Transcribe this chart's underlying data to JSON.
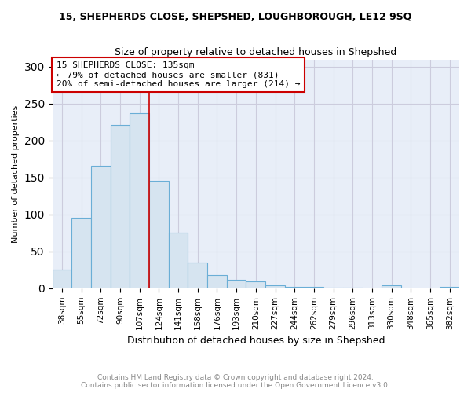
{
  "title": "15, SHEPHERDS CLOSE, SHEPSHED, LOUGHBOROUGH, LE12 9SQ",
  "subtitle": "Size of property relative to detached houses in Shepshed",
  "xlabel": "Distribution of detached houses by size in Shepshed",
  "ylabel": "Number of detached properties",
  "footer_line1": "Contains HM Land Registry data © Crown copyright and database right 2024.",
  "footer_line2": "Contains public sector information licensed under the Open Government Licence v3.0.",
  "categories": [
    "38sqm",
    "55sqm",
    "72sqm",
    "90sqm",
    "107sqm",
    "124sqm",
    "141sqm",
    "158sqm",
    "176sqm",
    "193sqm",
    "210sqm",
    "227sqm",
    "244sqm",
    "262sqm",
    "279sqm",
    "296sqm",
    "313sqm",
    "330sqm",
    "348sqm",
    "365sqm",
    "382sqm"
  ],
  "values": [
    25,
    96,
    166,
    221,
    237,
    146,
    75,
    35,
    18,
    11,
    9,
    4,
    2,
    2,
    1,
    1,
    0,
    4,
    0,
    0,
    2
  ],
  "bar_color": "#d6e4f0",
  "bar_edge_color": "#6aaed6",
  "property_line_index": 5,
  "property_line_color": "#cc0000",
  "annotation_text": "15 SHEPHERDS CLOSE: 135sqm\n← 79% of detached houses are smaller (831)\n20% of semi-detached houses are larger (214) →",
  "annotation_box_color": "#ffffff",
  "annotation_border_color": "#cc0000",
  "ylim": [
    0,
    310
  ],
  "yticks": [
    0,
    50,
    100,
    150,
    200,
    250,
    300
  ],
  "grid_color": "#ccccdd",
  "plot_bg_color": "#e8eef8",
  "background_color": "#ffffff"
}
